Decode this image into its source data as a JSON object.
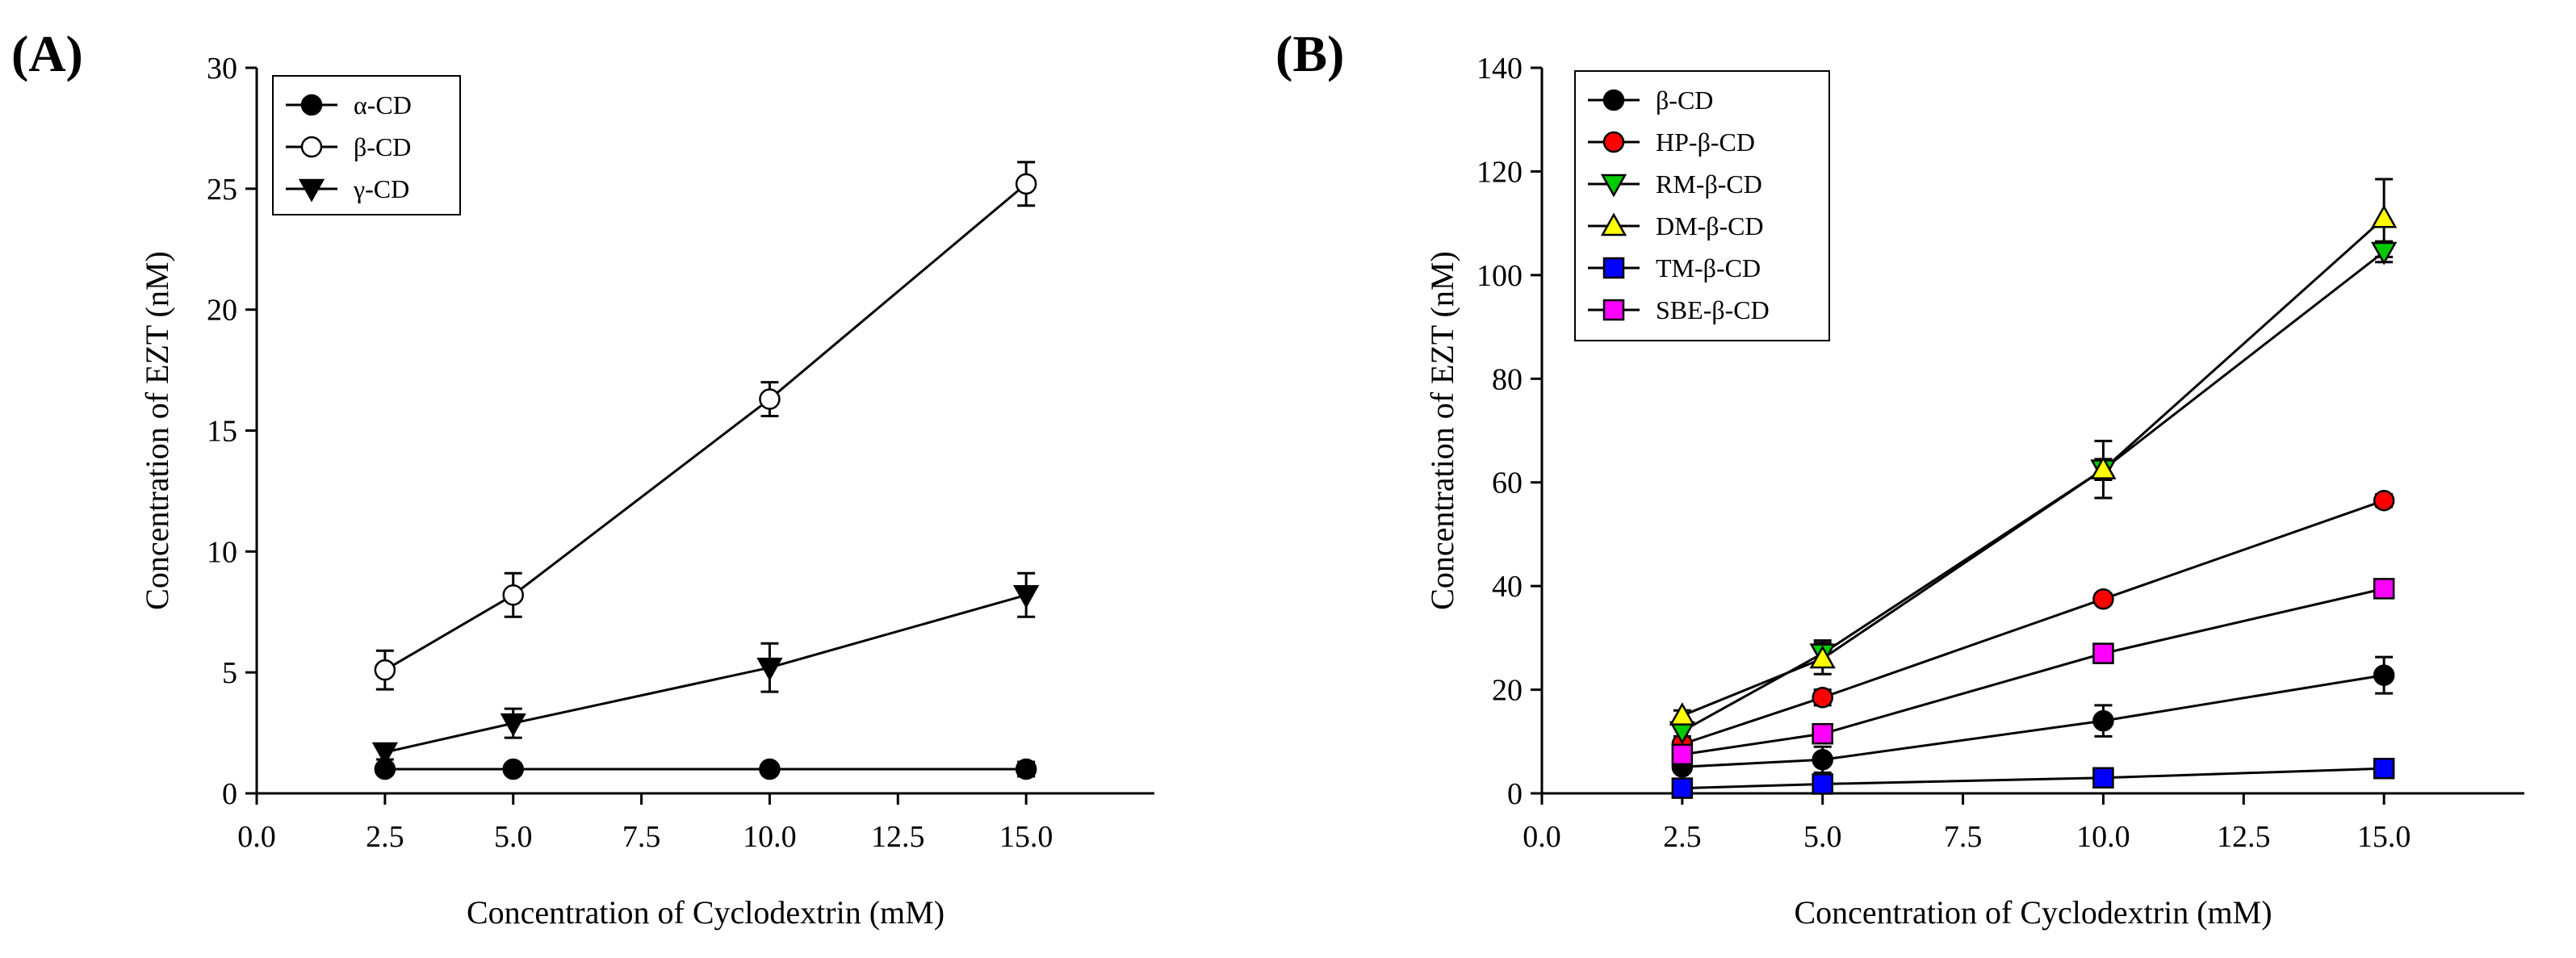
{
  "chart_data": [
    {
      "type": "line",
      "panel_label": "(A)",
      "xlabel": "Concentration of Cyclodextrin (mM)",
      "ylabel": "Concentration of EZT (nM)",
      "xlim": [
        0,
        17.5
      ],
      "ylim": [
        0,
        30
      ],
      "xticks": [
        0,
        2.5,
        5,
        7.5,
        10,
        12.5,
        15
      ],
      "xtick_labels": [
        "0.0",
        "2.5",
        "5.0",
        "7.5",
        "10.0",
        "12.5",
        "15.0"
      ],
      "yticks": [
        0,
        5,
        10,
        15,
        20,
        25,
        30
      ],
      "ytick_labels": [
        "0",
        "5",
        "10",
        "15",
        "20",
        "25",
        "30"
      ],
      "legend_position": "top-left",
      "x": [
        2.5,
        5,
        10,
        15
      ],
      "series": [
        {
          "name": "α-CD",
          "values": [
            1.0,
            1.0,
            1.0,
            1.0
          ],
          "errors": [
            0.2,
            0.2,
            0.2,
            0.3
          ],
          "marker": "circle",
          "fill": "#000000"
        },
        {
          "name": "β-CD",
          "values": [
            5.1,
            8.2,
            16.3,
            25.2
          ],
          "errors": [
            0.8,
            0.9,
            0.7,
            0.9
          ],
          "marker": "circle",
          "fill": "#ffffff"
        },
        {
          "name": "γ-CD",
          "values": [
            1.7,
            2.9,
            5.2,
            8.2
          ],
          "errors": [
            0.3,
            0.6,
            1.0,
            0.9
          ],
          "marker": "triangle-down",
          "fill": "#000000"
        }
      ]
    },
    {
      "type": "line",
      "panel_label": "(B)",
      "xlabel": "Concentration of Cyclodextrin (mM)",
      "ylabel": "Concentration of EZT (nM)",
      "xlim": [
        0,
        17.5
      ],
      "ylim": [
        0,
        140
      ],
      "xticks": [
        0,
        2.5,
        5,
        7.5,
        10,
        12.5,
        15
      ],
      "xtick_labels": [
        "0.0",
        "2.5",
        "5.0",
        "7.5",
        "10.0",
        "12.5",
        "15.0"
      ],
      "yticks": [
        0,
        20,
        40,
        60,
        80,
        100,
        120,
        140
      ],
      "ytick_labels": [
        "0",
        "20",
        "40",
        "60",
        "80",
        "100",
        "120",
        "140"
      ],
      "legend_position": "top-left",
      "x": [
        2.5,
        5,
        10,
        15
      ],
      "series": [
        {
          "name": "β-CD",
          "values": [
            5.1,
            6.5,
            14.0,
            22.8
          ],
          "errors": [
            1.0,
            2.5,
            3.0,
            3.5
          ],
          "marker": "circle",
          "fill": "#000000"
        },
        {
          "name": "HP-β-CD",
          "values": [
            9.5,
            18.5,
            37.5,
            56.5
          ],
          "errors": [
            0.8,
            1.5,
            1.0,
            1.2
          ],
          "marker": "circle",
          "fill": "#ff0000"
        },
        {
          "name": "RM-β-CD",
          "values": [
            12.0,
            27.0,
            62.5,
            104.5
          ],
          "errors": [
            1.0,
            2.5,
            2.0,
            2.0
          ],
          "marker": "triangle-down",
          "fill": "#00cc00"
        },
        {
          "name": "DM-β-CD",
          "values": [
            15.0,
            26.0,
            62.5,
            111.0
          ],
          "errors": [
            1.0,
            3.0,
            5.5,
            7.5
          ],
          "marker": "triangle-up",
          "fill": "#ffff00"
        },
        {
          "name": "TM-β-CD",
          "values": [
            1.0,
            1.8,
            3.0,
            4.8
          ],
          "errors": [
            0.3,
            0.4,
            0.4,
            0.5
          ],
          "marker": "square",
          "fill": "#0000ff"
        },
        {
          "name": "SBE-β-CD",
          "values": [
            7.5,
            11.5,
            27.0,
            39.5
          ],
          "errors": [
            0.8,
            1.0,
            1.0,
            1.0
          ],
          "marker": "square",
          "fill": "#ff00ff"
        }
      ]
    }
  ]
}
